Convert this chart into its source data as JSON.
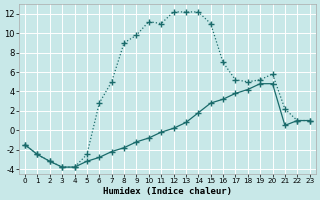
{
  "xlabel": "Humidex (Indice chaleur)",
  "background_color": "#c8e8e8",
  "grid_color": "#e8f8f8",
  "line_color": "#1a6b6b",
  "xlim": [
    -0.5,
    23.5
  ],
  "ylim": [
    -4.5,
    13.0
  ],
  "xticks": [
    0,
    1,
    2,
    3,
    4,
    5,
    6,
    7,
    8,
    9,
    10,
    11,
    12,
    13,
    14,
    15,
    16,
    17,
    18,
    19,
    20,
    21,
    22,
    23
  ],
  "yticks": [
    -4,
    -2,
    0,
    2,
    4,
    6,
    8,
    10,
    12
  ],
  "series1_x": [
    0,
    1,
    2,
    3,
    4,
    5,
    6,
    7,
    8,
    9,
    10,
    11,
    12,
    13,
    14,
    15,
    16,
    17,
    18,
    19,
    20,
    21,
    22,
    23
  ],
  "series1_y": [
    -1.5,
    -2.5,
    -3.2,
    -3.8,
    -3.8,
    -2.5,
    2.8,
    5.0,
    9.0,
    9.8,
    11.2,
    11.0,
    12.2,
    12.2,
    12.2,
    11.0,
    7.0,
    5.2,
    5.0,
    5.2,
    5.8,
    2.2,
    1.0,
    1.0
  ],
  "series2_x": [
    0,
    1,
    2,
    3,
    4,
    5,
    6,
    7,
    8,
    9,
    10,
    11,
    12,
    13,
    14,
    15,
    16,
    17,
    18,
    19,
    20,
    21,
    22,
    23
  ],
  "series2_y": [
    -1.5,
    -2.5,
    -3.2,
    -3.8,
    -3.8,
    -3.2,
    -2.8,
    -2.2,
    -1.8,
    -1.2,
    -0.8,
    -0.2,
    0.2,
    0.8,
    1.8,
    2.8,
    3.2,
    3.8,
    4.2,
    4.8,
    4.8,
    0.5,
    1.0,
    1.0
  ]
}
